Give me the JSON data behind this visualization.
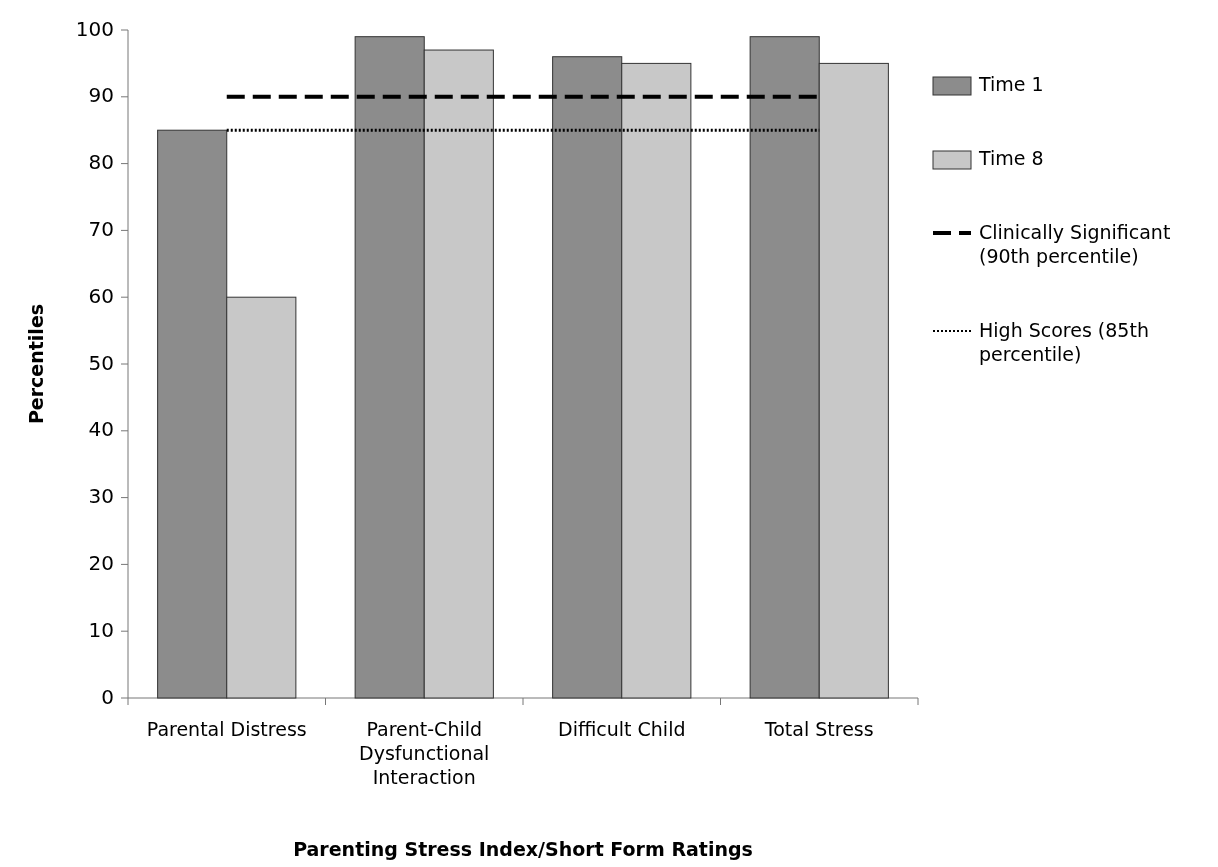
{
  "chart_data": {
    "type": "bar",
    "xlabel": "Parenting Stress Index/Short Form Ratings",
    "ylabel": "Percentiles",
    "categories": [
      "Parental Distress",
      "Parent-Child Dysfunctional Interaction",
      "Difficult Child",
      "Total Stress"
    ],
    "series": [
      {
        "name": "Time 1",
        "color": "#8c8c8c",
        "values": [
          85,
          99,
          96,
          99
        ]
      },
      {
        "name": "Time 8",
        "color": "#c8c8c8",
        "values": [
          60,
          97,
          95,
          95
        ]
      },
      {
        "name": "Clinically Significant (90th percentile)",
        "type": "line",
        "line_style": "dashed",
        "color": "#000000",
        "values": [
          90,
          90,
          90,
          90
        ]
      },
      {
        "name": "High Scores (85th percentile)",
        "type": "line",
        "line_style": "dotted",
        "color": "#000000",
        "values": [
          85,
          85,
          85,
          85
        ]
      }
    ],
    "ylim": [
      0,
      100
    ],
    "yticks": [
      0,
      10,
      20,
      30,
      40,
      50,
      60,
      70,
      80,
      90,
      100
    ],
    "legend": "right"
  }
}
